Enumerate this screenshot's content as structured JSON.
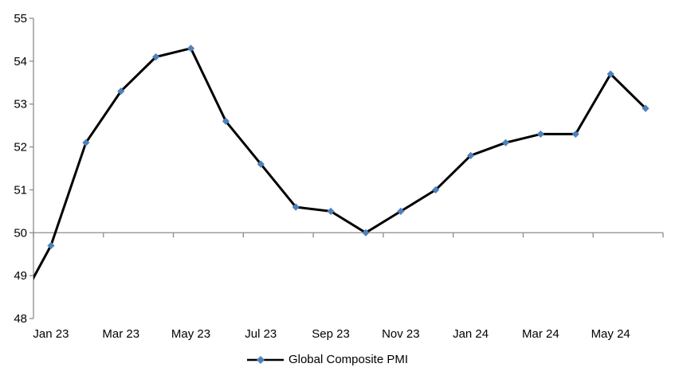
{
  "page": {
    "background": "#FFFFFF"
  },
  "legend": {
    "label": "Global Composite PMI",
    "position": "bottom-center"
  },
  "chart_data": {
    "type": "line",
    "title": "",
    "y_axis": {
      "min": 48,
      "max": 55,
      "step": 1,
      "tick_labels": [
        "48",
        "49",
        "50",
        "51",
        "52",
        "53",
        "54",
        "55"
      ]
    },
    "x_axis": {
      "tick_labels": [
        "Jan 23",
        "Mar 23",
        "May 23",
        "Jul 23",
        "Sep 23",
        "Nov 23",
        "Jan 24",
        "Mar 24",
        "May 24"
      ],
      "label_interval": 2,
      "baseline_value": 50,
      "ticks_below_baseline": true
    },
    "grid": {
      "horizontal_line_at": 50,
      "other_gridlines": false
    },
    "series": [
      {
        "name": "Global Composite PMI",
        "line_color": "#000000",
        "marker_shape": "diamond",
        "marker_color": "#4E81BD",
        "x": [
          "Dec 22",
          "Jan 23",
          "Feb 23",
          "Mar 23",
          "Apr 23",
          "May 23",
          "Jun 23",
          "Jul 23",
          "Aug 23",
          "Sep 23",
          "Oct 23",
          "Nov 23",
          "Dec 23",
          "Jan 24",
          "Feb 24",
          "Mar 24",
          "Apr 24",
          "May 24",
          "Jun 24"
        ],
        "values": [
          48.2,
          49.7,
          52.1,
          53.3,
          54.1,
          54.3,
          52.6,
          51.6,
          50.6,
          50.5,
          50.0,
          50.5,
          51.0,
          51.8,
          52.1,
          52.3,
          52.3,
          53.7,
          52.9
        ],
        "first_point_clipped_at_axis": true
      }
    ],
    "axis_color": "#8C8C8C",
    "text_color": "#000000",
    "legend_position": "bottom"
  }
}
